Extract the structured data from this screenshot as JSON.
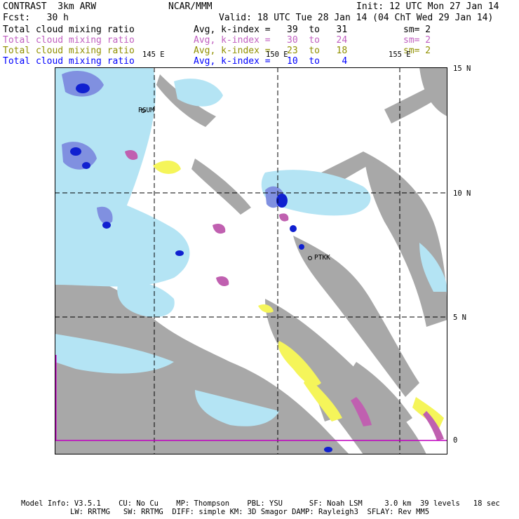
{
  "header": {
    "model": "CONTRAST  3km ARW",
    "org": "NCAR/MMM",
    "init": "Init: 12 UTC Mon 27 Jan 14",
    "fcst": "Fcst:   30 h",
    "valid": "Valid: 18 UTC Tue 28 Jan 14 (04 ChT Wed 29 Jan 14)"
  },
  "legend": [
    {
      "field": "Total cloud mixing ratio",
      "avg": "Avg, k-index =   39  to   31",
      "sm": "sm= 2",
      "color": "#000000"
    },
    {
      "field": "Total cloud mixing ratio",
      "avg": "Avg, k-index =   30  to   24",
      "sm": "sm= 2",
      "color": "#c060c0"
    },
    {
      "field": "Total cloud mixing ratio",
      "avg": "Avg, k-index =   23  to   18",
      "sm": "sm= 2",
      "color": "#909000"
    },
    {
      "field": "Total cloud mixing ratio",
      "avg": "Avg, k-index =   10  to    4",
      "sm": "",
      "color": "#0000ff"
    }
  ],
  "map": {
    "lon_labels": [
      "145 E",
      "150 E",
      "155 E"
    ],
    "lat_labels": [
      "15 N",
      "10 N",
      "5 N",
      "0"
    ],
    "stations": [
      "PGUM",
      "PTKK"
    ],
    "colors": {
      "level1": "#a0a0a0",
      "level2": "#b0e0f0",
      "level3": "#c060b0",
      "level4": "#f5f55a",
      "level5": "#8090e0",
      "level6": "#1020d0",
      "equator": "#c000c0"
    }
  },
  "footer": {
    "line1": "Model Info: V3.5.1    CU: No Cu    MP: Thompson    PBL: YSU      SF: Noah LSM     3.0 km  39 levels   18 sec",
    "line2": "LW: RRTMG   SW: RRTMG  DIFF: simple KM: 3D Smagor DAMP: Rayleigh3  SFLAY: Rev MM5"
  }
}
